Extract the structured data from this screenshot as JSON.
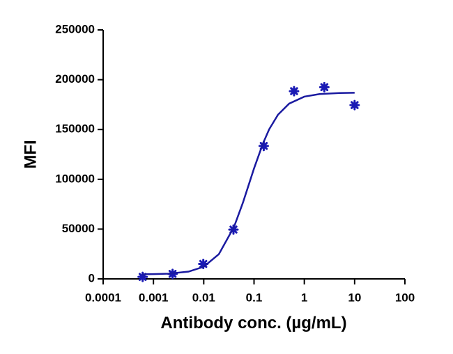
{
  "chart_data": {
    "type": "scatter",
    "x_label": "Antibody conc. (µg/mL)",
    "y_label": "MFI",
    "x_scale": "log",
    "xlim": [
      0.0001,
      100
    ],
    "xticks": [
      0.0001,
      0.001,
      0.01,
      0.1,
      1,
      10,
      100
    ],
    "ylim": [
      0,
      250000
    ],
    "yticks": [
      0,
      50000,
      100000,
      150000,
      200000,
      250000
    ],
    "series": [
      {
        "color": "#1a1ab4",
        "x": [
          0.00061,
          0.0024,
          0.0098,
          0.039,
          0.156,
          0.625,
          2.5,
          10
        ],
        "values": [
          2000,
          5000,
          15000,
          49500,
          133500,
          188500,
          192500,
          174500
        ]
      },
      {
        "type": "line",
        "color": "#1a1aa0",
        "x": [
          0.0006,
          0.001,
          0.002,
          0.005,
          0.01,
          0.02,
          0.04,
          0.06,
          0.08,
          0.1,
          0.15,
          0.2,
          0.3,
          0.5,
          1,
          2,
          5,
          10
        ],
        "values": [
          4600,
          4800,
          5200,
          7300,
          12200,
          24800,
          52200,
          76400,
          95800,
          110900,
          135800,
          150200,
          164900,
          176000,
          183000,
          185600,
          186600,
          186900
        ]
      }
    ]
  }
}
